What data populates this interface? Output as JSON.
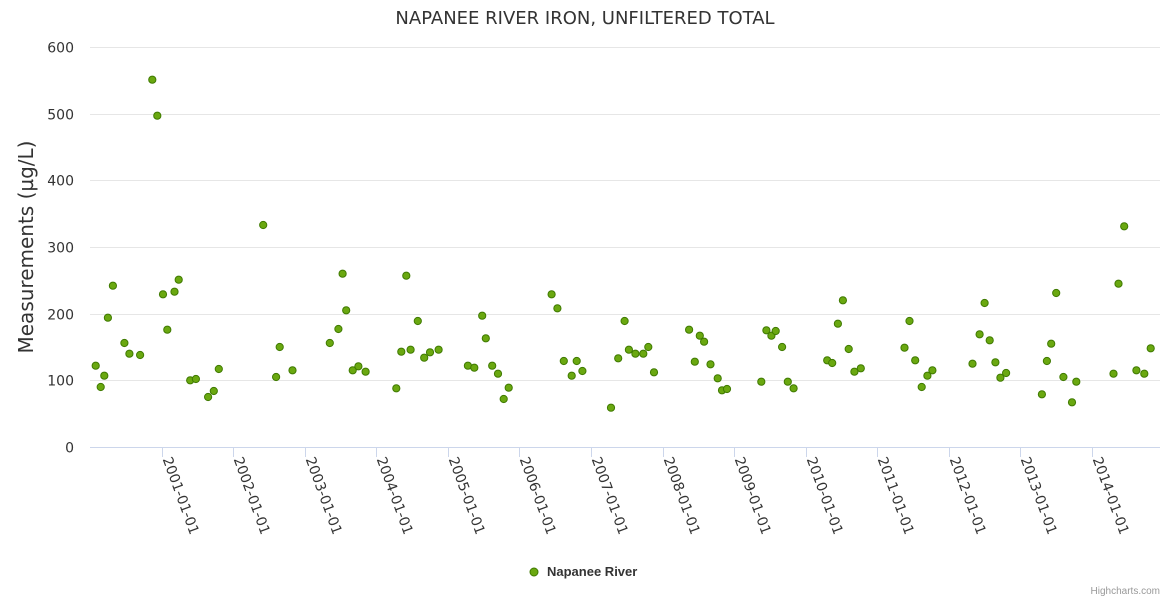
{
  "chart_data": {
    "type": "scatter",
    "title": "NAPANEE RIVER IRON, UNFILTERED TOTAL",
    "xlabel": "",
    "ylabel": "Measurements (µg/L)",
    "ylim": [
      0,
      600
    ],
    "yticks": [
      0,
      100,
      200,
      300,
      400,
      500,
      600
    ],
    "xlim": [
      2000.0,
      2014.95
    ],
    "xticks": [
      {
        "label": "2001-01-01",
        "value": 2001.0
      },
      {
        "label": "2002-01-01",
        "value": 2002.0
      },
      {
        "label": "2003-01-01",
        "value": 2003.0
      },
      {
        "label": "2004-01-01",
        "value": 2004.0
      },
      {
        "label": "2005-01-01",
        "value": 2005.0
      },
      {
        "label": "2006-01-01",
        "value": 2006.0
      },
      {
        "label": "2007-01-01",
        "value": 2007.0
      },
      {
        "label": "2008-01-01",
        "value": 2008.0
      },
      {
        "label": "2009-01-01",
        "value": 2009.0
      },
      {
        "label": "2010-01-01",
        "value": 2010.0
      },
      {
        "label": "2011-01-01",
        "value": 2011.0
      },
      {
        "label": "2012-01-01",
        "value": 2012.0
      },
      {
        "label": "2013-01-01",
        "value": 2013.0
      },
      {
        "label": "2014-01-01",
        "value": 2014.0
      }
    ],
    "legend_position": "bottom-center",
    "credits": "Highcharts.com",
    "colors": {
      "marker_fill": "#6aa810",
      "marker_stroke": "#3f7a00",
      "grid": "#e6e6e6",
      "axis": "#ccd6eb"
    },
    "series": [
      {
        "name": "Napanee River",
        "points": [
          [
            2000.08,
            122
          ],
          [
            2000.15,
            90
          ],
          [
            2000.2,
            107
          ],
          [
            2000.25,
            194
          ],
          [
            2000.32,
            242
          ],
          [
            2000.48,
            156
          ],
          [
            2000.55,
            140
          ],
          [
            2000.7,
            138
          ],
          [
            2000.87,
            551
          ],
          [
            2000.94,
            497
          ],
          [
            2001.02,
            229
          ],
          [
            2001.08,
            176
          ],
          [
            2001.18,
            233
          ],
          [
            2001.24,
            251
          ],
          [
            2001.4,
            100
          ],
          [
            2001.48,
            102
          ],
          [
            2001.65,
            75
          ],
          [
            2001.73,
            84
          ],
          [
            2001.8,
            117
          ],
          [
            2002.42,
            333
          ],
          [
            2002.6,
            105
          ],
          [
            2002.65,
            150
          ],
          [
            2002.83,
            115
          ],
          [
            2003.35,
            156
          ],
          [
            2003.47,
            177
          ],
          [
            2003.53,
            260
          ],
          [
            2003.58,
            205
          ],
          [
            2003.67,
            115
          ],
          [
            2003.75,
            121
          ],
          [
            2003.85,
            113
          ],
          [
            2004.28,
            88
          ],
          [
            2004.35,
            143
          ],
          [
            2004.42,
            257
          ],
          [
            2004.48,
            146
          ],
          [
            2004.58,
            189
          ],
          [
            2004.67,
            134
          ],
          [
            2004.75,
            142
          ],
          [
            2004.87,
            146
          ],
          [
            2005.28,
            122
          ],
          [
            2005.37,
            119
          ],
          [
            2005.48,
            197
          ],
          [
            2005.53,
            163
          ],
          [
            2005.62,
            122
          ],
          [
            2005.7,
            110
          ],
          [
            2005.78,
            72
          ],
          [
            2005.85,
            89
          ],
          [
            2006.45,
            229
          ],
          [
            2006.53,
            208
          ],
          [
            2006.62,
            129
          ],
          [
            2006.73,
            107
          ],
          [
            2006.8,
            129
          ],
          [
            2006.88,
            114
          ],
          [
            2007.28,
            59
          ],
          [
            2007.38,
            133
          ],
          [
            2007.47,
            189
          ],
          [
            2007.53,
            146
          ],
          [
            2007.62,
            140
          ],
          [
            2007.73,
            140
          ],
          [
            2007.8,
            150
          ],
          [
            2007.88,
            112
          ],
          [
            2008.37,
            176
          ],
          [
            2008.45,
            128
          ],
          [
            2008.52,
            167
          ],
          [
            2008.58,
            158
          ],
          [
            2008.67,
            124
          ],
          [
            2008.77,
            103
          ],
          [
            2008.83,
            85
          ],
          [
            2008.9,
            87
          ],
          [
            2009.38,
            98
          ],
          [
            2009.45,
            175
          ],
          [
            2009.52,
            167
          ],
          [
            2009.58,
            174
          ],
          [
            2009.67,
            150
          ],
          [
            2009.75,
            98
          ],
          [
            2009.83,
            88
          ],
          [
            2010.3,
            130
          ],
          [
            2010.37,
            126
          ],
          [
            2010.45,
            185
          ],
          [
            2010.52,
            220
          ],
          [
            2010.6,
            147
          ],
          [
            2010.68,
            113
          ],
          [
            2010.77,
            118
          ],
          [
            2011.38,
            149
          ],
          [
            2011.45,
            189
          ],
          [
            2011.53,
            130
          ],
          [
            2011.62,
            90
          ],
          [
            2011.7,
            107
          ],
          [
            2011.77,
            115
          ],
          [
            2012.33,
            125
          ],
          [
            2012.43,
            169
          ],
          [
            2012.5,
            216
          ],
          [
            2012.57,
            160
          ],
          [
            2012.65,
            127
          ],
          [
            2012.72,
            104
          ],
          [
            2012.8,
            111
          ],
          [
            2013.3,
            79
          ],
          [
            2013.37,
            129
          ],
          [
            2013.43,
            155
          ],
          [
            2013.5,
            231
          ],
          [
            2013.6,
            105
          ],
          [
            2013.72,
            67
          ],
          [
            2013.78,
            98
          ],
          [
            2014.3,
            110
          ],
          [
            2014.37,
            245
          ],
          [
            2014.45,
            331
          ],
          [
            2014.62,
            115
          ],
          [
            2014.73,
            110
          ],
          [
            2014.82,
            148
          ]
        ]
      }
    ]
  }
}
